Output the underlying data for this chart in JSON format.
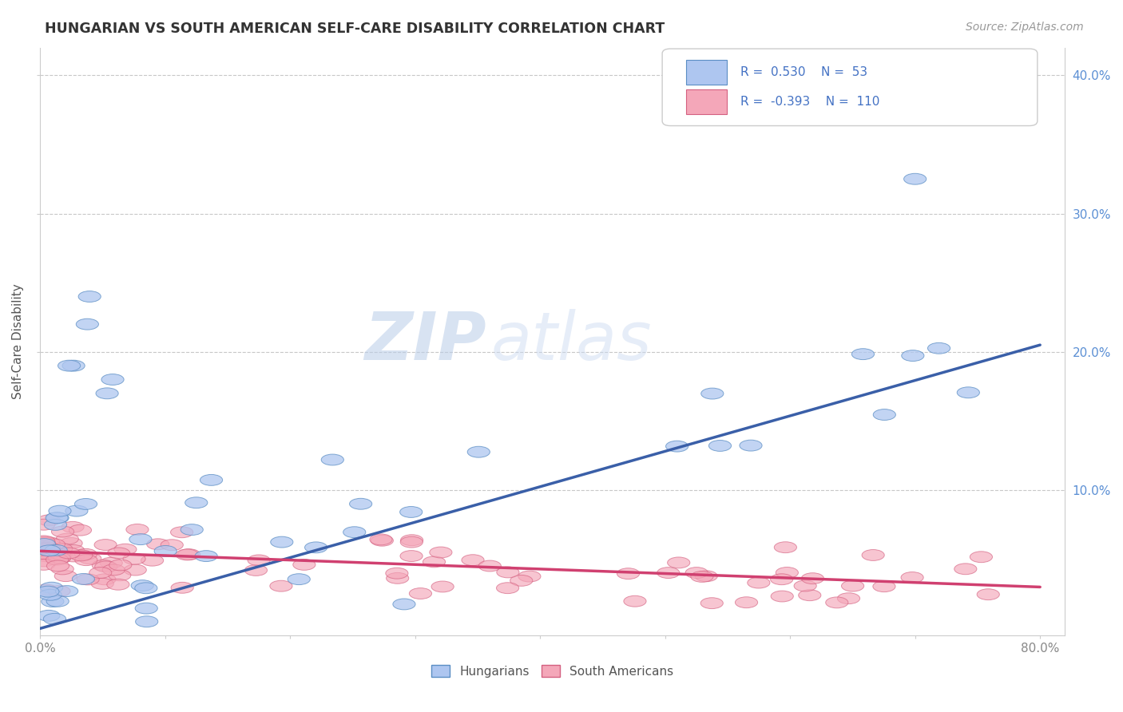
{
  "title": "HUNGARIAN VS SOUTH AMERICAN SELF-CARE DISABILITY CORRELATION CHART",
  "source": "Source: ZipAtlas.com",
  "ylabel": "Self-Care Disability",
  "xlim": [
    0.0,
    0.82
  ],
  "ylim": [
    -0.005,
    0.42
  ],
  "xticks": [
    0.0,
    0.1,
    0.2,
    0.3,
    0.4,
    0.5,
    0.6,
    0.7,
    0.8
  ],
  "ytick_positions": [
    0.1,
    0.2,
    0.3,
    0.4
  ],
  "ytick_labels_right": [
    "10.0%",
    "20.0%",
    "30.0%",
    "40.0%"
  ],
  "xtick_labels": [
    "0.0%",
    "",
    "",
    "",
    "",
    "",
    "",
    "",
    "80.0%"
  ],
  "hungarian_color": "#aec6f0",
  "hungarian_edge_color": "#5b8ec4",
  "sa_color": "#f4a7b9",
  "sa_edge_color": "#d46080",
  "hungarian_line_color": "#3a5fa8",
  "sa_line_color": "#d04070",
  "R_hungarian": 0.53,
  "N_hungarian": 53,
  "R_sa": -0.393,
  "N_sa": 110,
  "legend_label_1": "Hungarians",
  "legend_label_2": "South Americans",
  "watermark_zip": "ZIP",
  "watermark_atlas": "atlas",
  "background_color": "#ffffff",
  "grid_color": "#c8c8c8",
  "tick_label_color": "#888888",
  "ytick_label_color": "#5b8fd4",
  "title_color": "#333333",
  "source_color": "#999999"
}
